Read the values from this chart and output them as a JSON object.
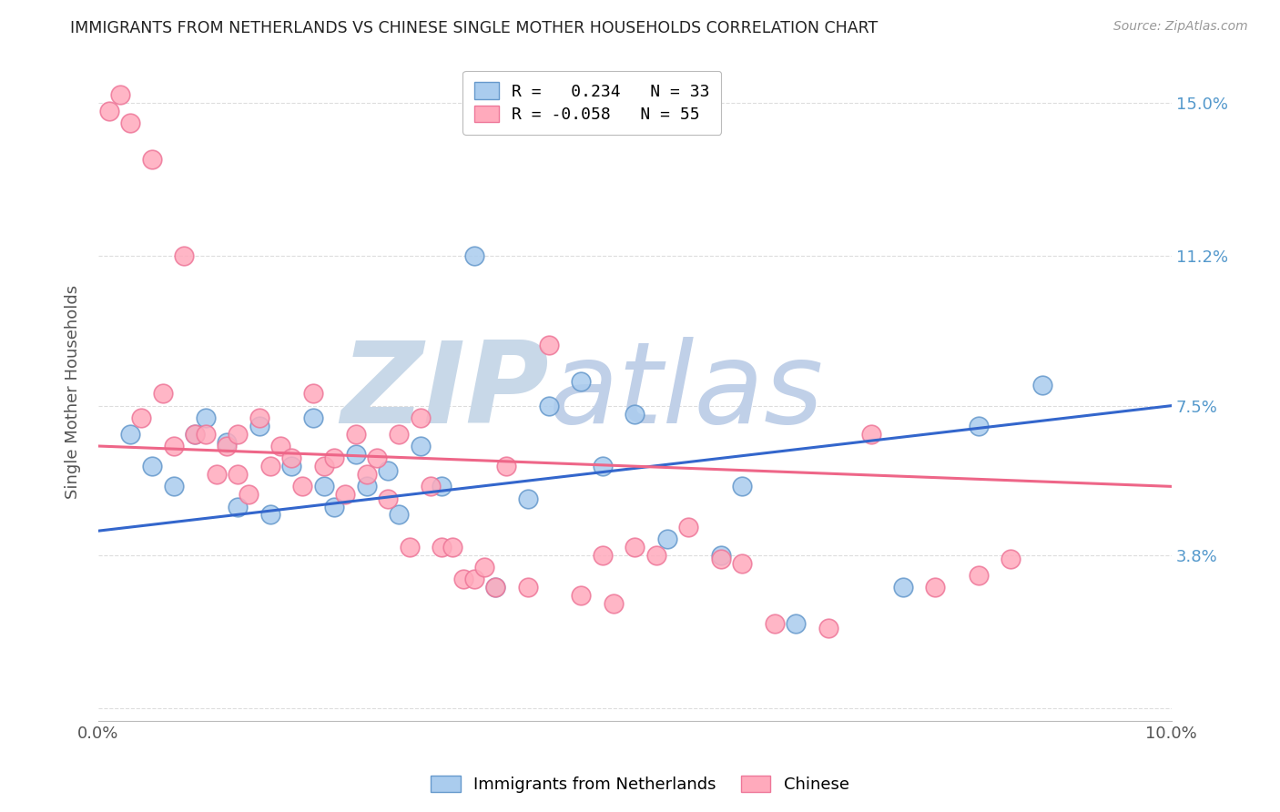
{
  "title": "IMMIGRANTS FROM NETHERLANDS VS CHINESE SINGLE MOTHER HOUSEHOLDS CORRELATION CHART",
  "source": "Source: ZipAtlas.com",
  "ylabel": "Single Mother Households",
  "yticks": [
    0.0,
    0.038,
    0.075,
    0.112,
    0.15
  ],
  "ytick_labels": [
    "",
    "3.8%",
    "7.5%",
    "11.2%",
    "15.0%"
  ],
  "xlim": [
    0.0,
    0.1
  ],
  "ylim": [
    -0.003,
    0.16
  ],
  "legend_label_blue": "R =   0.234   N = 33",
  "legend_label_pink": "R = -0.058   N = 55",
  "legend_label_blue2": "Immigrants from Netherlands",
  "legend_label_pink2": "Chinese",
  "watermark_zip": "ZIP",
  "watermark_atlas": "atlas",
  "blue_scatter_x": [
    0.003,
    0.005,
    0.007,
    0.009,
    0.01,
    0.012,
    0.013,
    0.015,
    0.016,
    0.018,
    0.02,
    0.021,
    0.022,
    0.024,
    0.025,
    0.027,
    0.028,
    0.03,
    0.032,
    0.035,
    0.037,
    0.04,
    0.042,
    0.045,
    0.047,
    0.05,
    0.053,
    0.058,
    0.06,
    0.065,
    0.075,
    0.082,
    0.088
  ],
  "blue_scatter_y": [
    0.068,
    0.06,
    0.055,
    0.068,
    0.072,
    0.066,
    0.05,
    0.07,
    0.048,
    0.06,
    0.072,
    0.055,
    0.05,
    0.063,
    0.055,
    0.059,
    0.048,
    0.065,
    0.055,
    0.112,
    0.03,
    0.052,
    0.075,
    0.081,
    0.06,
    0.073,
    0.042,
    0.038,
    0.055,
    0.021,
    0.03,
    0.07,
    0.08
  ],
  "pink_scatter_x": [
    0.001,
    0.002,
    0.003,
    0.004,
    0.005,
    0.006,
    0.007,
    0.008,
    0.009,
    0.01,
    0.011,
    0.012,
    0.013,
    0.013,
    0.014,
    0.015,
    0.016,
    0.017,
    0.018,
    0.019,
    0.02,
    0.021,
    0.022,
    0.023,
    0.024,
    0.025,
    0.026,
    0.027,
    0.028,
    0.029,
    0.03,
    0.031,
    0.032,
    0.033,
    0.034,
    0.035,
    0.036,
    0.037,
    0.038,
    0.04,
    0.042,
    0.045,
    0.047,
    0.048,
    0.05,
    0.052,
    0.055,
    0.058,
    0.06,
    0.063,
    0.068,
    0.072,
    0.078,
    0.082,
    0.085
  ],
  "pink_scatter_y": [
    0.148,
    0.152,
    0.145,
    0.072,
    0.136,
    0.078,
    0.065,
    0.112,
    0.068,
    0.068,
    0.058,
    0.065,
    0.058,
    0.068,
    0.053,
    0.072,
    0.06,
    0.065,
    0.062,
    0.055,
    0.078,
    0.06,
    0.062,
    0.053,
    0.068,
    0.058,
    0.062,
    0.052,
    0.068,
    0.04,
    0.072,
    0.055,
    0.04,
    0.04,
    0.032,
    0.032,
    0.035,
    0.03,
    0.06,
    0.03,
    0.09,
    0.028,
    0.038,
    0.026,
    0.04,
    0.038,
    0.045,
    0.037,
    0.036,
    0.021,
    0.02,
    0.068,
    0.03,
    0.033,
    0.037
  ],
  "blue_line_y_start": 0.044,
  "blue_line_y_end": 0.075,
  "pink_line_y_start": 0.065,
  "pink_line_y_end": 0.055,
  "title_color": "#222222",
  "source_color": "#999999",
  "blue_color": "#aaccee",
  "pink_color": "#ffaabc",
  "blue_edge_color": "#6699cc",
  "pink_edge_color": "#ee7799",
  "blue_line_color": "#3366cc",
  "pink_line_color": "#ee6688",
  "watermark_zip_color": "#c8d8e8",
  "watermark_atlas_color": "#c0d0e8",
  "grid_color": "#dddddd",
  "right_axis_color": "#5599cc"
}
